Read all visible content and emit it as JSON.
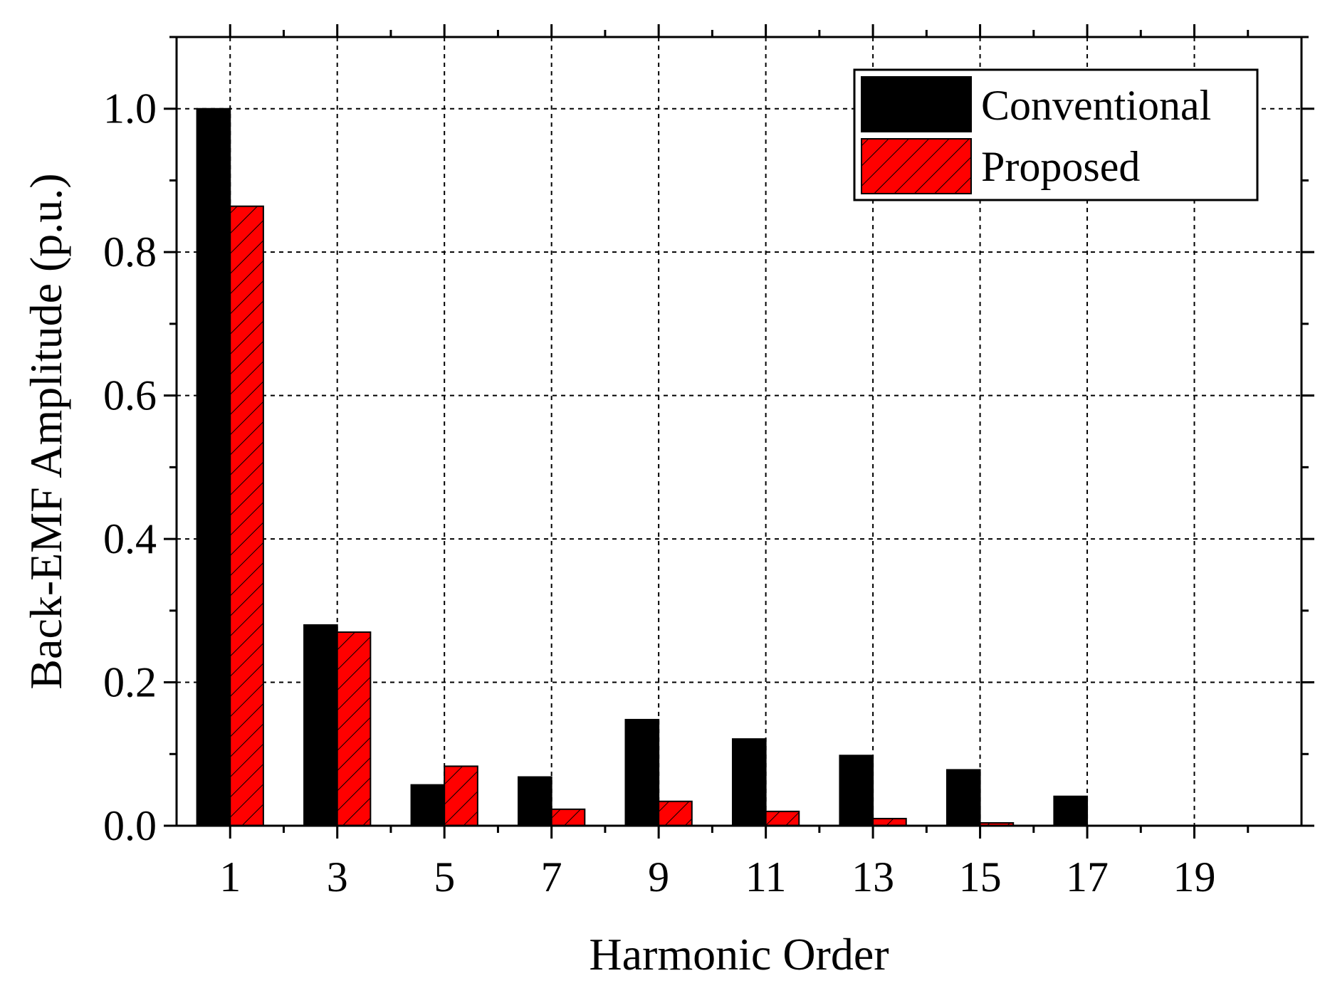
{
  "chart_data": {
    "type": "bar",
    "categories": [
      "1",
      "3",
      "5",
      "7",
      "9",
      "11",
      "13",
      "15",
      "17",
      "19"
    ],
    "x": [
      1,
      3,
      5,
      7,
      9,
      11,
      13,
      15,
      17,
      19
    ],
    "series": [
      {
        "name": "Conventional",
        "values": [
          1.0,
          0.28,
          0.057,
          0.068,
          0.148,
          0.121,
          0.098,
          0.078,
          0.041,
          0.0
        ],
        "color": "#000000",
        "pattern": "solid"
      },
      {
        "name": "Proposed",
        "values": [
          0.864,
          0.27,
          0.083,
          0.023,
          0.034,
          0.02,
          0.01,
          0.004,
          0.0,
          0.0
        ],
        "color": "#ff0000",
        "pattern": "hatched"
      }
    ],
    "title": "",
    "xlabel": "Harmonic Order",
    "ylabel": "Back-EMF Amplitude (p.u.)",
    "xlim": [
      0,
      21
    ],
    "ylim": [
      0,
      1.1
    ],
    "yticks": [
      "0.0",
      "0.2",
      "0.4",
      "0.6",
      "0.8",
      "1.0"
    ],
    "ytick_values": [
      0,
      0.2,
      0.4,
      0.6,
      0.8,
      1.0
    ],
    "grid": true,
    "legend_position": "top-right"
  }
}
